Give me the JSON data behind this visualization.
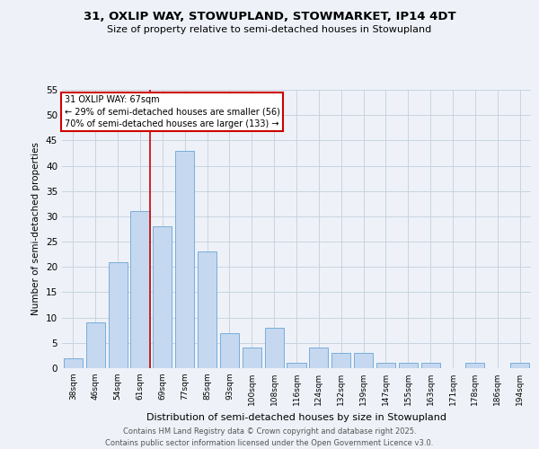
{
  "title1": "31, OXLIP WAY, STOWUPLAND, STOWMARKET, IP14 4DT",
  "title2": "Size of property relative to semi-detached houses in Stowupland",
  "xlabel": "Distribution of semi-detached houses by size in Stowupland",
  "ylabel": "Number of semi-detached properties",
  "categories": [
    "38sqm",
    "46sqm",
    "54sqm",
    "61sqm",
    "69sqm",
    "77sqm",
    "85sqm",
    "93sqm",
    "100sqm",
    "108sqm",
    "116sqm",
    "124sqm",
    "132sqm",
    "139sqm",
    "147sqm",
    "155sqm",
    "163sqm",
    "171sqm",
    "178sqm",
    "186sqm",
    "194sqm"
  ],
  "values": [
    2,
    9,
    21,
    31,
    28,
    43,
    23,
    7,
    4,
    8,
    1,
    4,
    3,
    3,
    1,
    1,
    1,
    0,
    1,
    0,
    1
  ],
  "bar_color": "#c5d8f0",
  "bar_edge_color": "#7aadda",
  "red_line_index": 3,
  "annotation_title": "31 OXLIP WAY: 67sqm",
  "annotation_line1": "← 29% of semi-detached houses are smaller (56)",
  "annotation_line2": "70% of semi-detached houses are larger (133) →",
  "annotation_box_color": "#ffffff",
  "annotation_box_edge": "#cc0000",
  "red_line_color": "#cc0000",
  "grid_color": "#c8d4e0",
  "background_color": "#eef2f8",
  "footer1": "Contains HM Land Registry data © Crown copyright and database right 2025.",
  "footer2": "Contains public sector information licensed under the Open Government Licence v3.0.",
  "ylim": [
    0,
    55
  ],
  "yticks": [
    0,
    5,
    10,
    15,
    20,
    25,
    30,
    35,
    40,
    45,
    50,
    55
  ]
}
